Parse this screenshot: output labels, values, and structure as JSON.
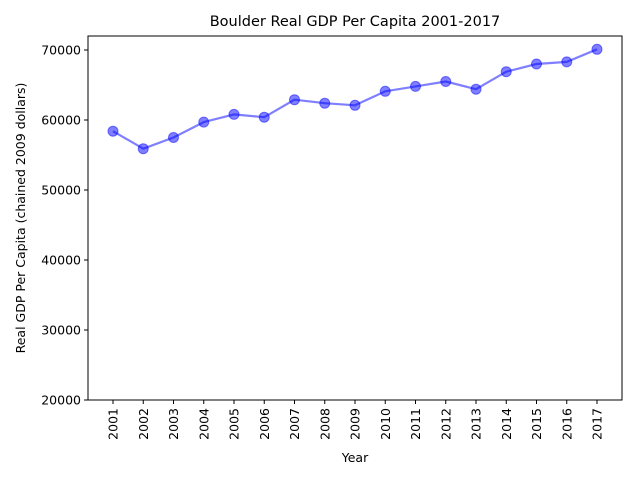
{
  "chart_data": {
    "type": "line",
    "title": "Boulder Real GDP Per Capita 2001-2017",
    "xlabel": "Year",
    "ylabel": "Real GDP Per Capita (chained 2009 dollars)",
    "categories": [
      "2001",
      "2002",
      "2003",
      "2004",
      "2005",
      "2006",
      "2007",
      "2008",
      "2009",
      "2010",
      "2011",
      "2012",
      "2013",
      "2014",
      "2015",
      "2016",
      "2017"
    ],
    "series": [
      {
        "values": [
          58400,
          55900,
          57500,
          59700,
          60800,
          60400,
          62900,
          62400,
          62100,
          64100,
          64800,
          65500,
          64400,
          66900,
          68000,
          68300,
          70100
        ]
      }
    ],
    "ylim": [
      20000,
      72000
    ],
    "yticks": [
      20000,
      30000,
      40000,
      50000,
      60000,
      70000
    ],
    "grid": false,
    "legend": "none",
    "line_color": "#0000ff",
    "line_alpha": 0.5
  }
}
